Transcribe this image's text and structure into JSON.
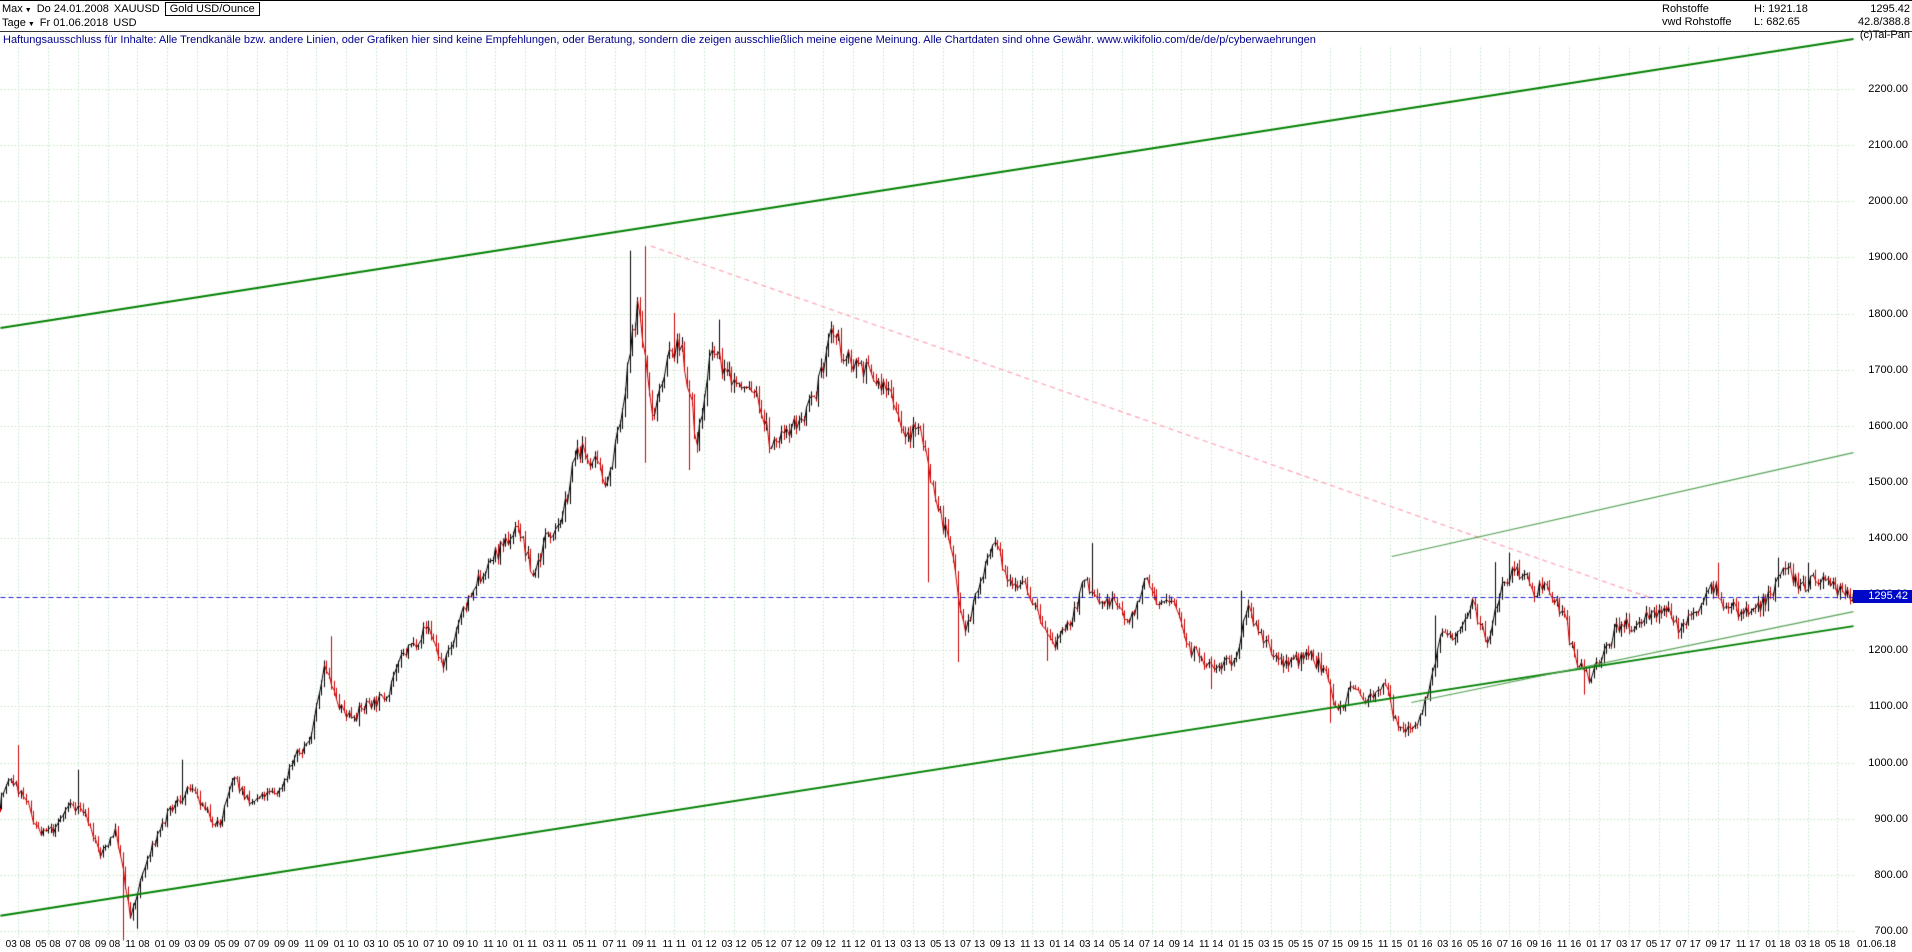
{
  "header": {
    "left": {
      "range": "Max",
      "dropdown_glyph": "▼",
      "start_date": "Do 24.01.2008",
      "symbol": "XAUUSD",
      "instrument": "Gold USD/Ounce",
      "period": "Tage",
      "end_date": "Fr 01.06.2018",
      "currency": "USD"
    },
    "right": {
      "category": "Rohstoffe",
      "high_label": "H:",
      "high_value": "1921.18",
      "last_value": "1295.42",
      "source": "vwd Rohstoffe",
      "low_label": "L:",
      "low_value": "682.65",
      "stat": "42.8/388.8",
      "copyright": "(c)Tai-Pan"
    },
    "disclaimer": "Haftungsausschluss für Inhalte: Alle Trendkanäle bzw. andere Linien, oder Grafiken hier sind keine Empfehlungen, oder Beratung, sondern die zeigen ausschließlich meine eigene Meinung. Alle Chartdaten sind ohne Gewähr.  www.wikifolio.com/de/de/p/cyberwaehrungen"
  },
  "chart_data": {
    "type": "candlestick",
    "title": "Gold USD/Ounce (XAUUSD), Tage, 24.01.2008 - 01.06.2018",
    "ylabel": "USD",
    "ylim": [
      660,
      2300
    ],
    "time_range": [
      2008.065,
      2018.42
    ],
    "y_ticks": [
      2200,
      2100,
      2000,
      1900,
      1800,
      1700,
      1600,
      1500,
      1400,
      1300,
      1200,
      1100,
      1000,
      900,
      800,
      700
    ],
    "x_tick_labels": [
      "03 08",
      "05 08",
      "07 08",
      "09 08",
      "11 08",
      "01 09",
      "03 09",
      "05 09",
      "07 09",
      "09 09",
      "11 09",
      "01 10",
      "03 10",
      "05 10",
      "07 10",
      "09 10",
      "11 10",
      "01 11",
      "03 11",
      "05 11",
      "07 11",
      "09 11",
      "11 11",
      "01 12",
      "03 12",
      "05 12",
      "07 12",
      "09 12",
      "11 12",
      "01 13",
      "03 13",
      "05 13",
      "07 13",
      "09 13",
      "11 13",
      "01 14",
      "03 14",
      "05 14",
      "07 14",
      "09 14",
      "11 14",
      "01 15",
      "03 15",
      "05 15",
      "07 15",
      "09 15",
      "11 15",
      "01 16",
      "03 16",
      "05 16",
      "07 16",
      "09 16",
      "11 16",
      "01 17",
      "03 17",
      "05 17",
      "07 17",
      "09 17",
      "11 17",
      "01 18",
      "03 18",
      "05 18"
    ],
    "end_label": "01.06.18",
    "last_price": 1295.42,
    "last_price_text": "1295.42",
    "all_time_high": 1921.18,
    "all_time_low": 682.65,
    "monthly": [
      [
        "2008-01",
        923
      ],
      [
        "2008-02",
        971
      ],
      [
        "2008-03",
        933,
        1032,
        null
      ],
      [
        "2008-04",
        871
      ],
      [
        "2008-05",
        885
      ],
      [
        "2008-06",
        930
      ],
      [
        "2008-07",
        913,
        988,
        null
      ],
      [
        "2008-08",
        833
      ],
      [
        "2008-09",
        885
      ],
      [
        "2008-10",
        724,
        null,
        682
      ],
      [
        "2008-11",
        816,
        null,
        705
      ],
      [
        "2008-12",
        882
      ],
      [
        "2009-01",
        927
      ],
      [
        "2009-02",
        952,
        1006,
        null
      ],
      [
        "2009-03",
        916
      ],
      [
        "2009-04",
        888
      ],
      [
        "2009-05",
        975
      ],
      [
        "2009-06",
        927
      ],
      [
        "2009-07",
        939
      ],
      [
        "2009-08",
        953
      ],
      [
        "2009-09",
        1008
      ],
      [
        "2009-10",
        1040
      ],
      [
        "2009-11",
        1175
      ],
      [
        "2009-12",
        1096,
        1226,
        null
      ],
      [
        "2010-01",
        1083
      ],
      [
        "2010-02",
        1108
      ],
      [
        "2010-03",
        1113
      ],
      [
        "2010-04",
        1179
      ],
      [
        "2010-05",
        1215
      ],
      [
        "2010-06",
        1244
      ],
      [
        "2010-07",
        1169
      ],
      [
        "2010-08",
        1248
      ],
      [
        "2010-09",
        1307
      ],
      [
        "2010-10",
        1357
      ],
      [
        "2010-11",
        1386
      ],
      [
        "2010-12",
        1421
      ],
      [
        "2011-01",
        1333
      ],
      [
        "2011-02",
        1411
      ],
      [
        "2011-03",
        1439
      ],
      [
        "2011-04",
        1564
      ],
      [
        "2011-05",
        1536
      ],
      [
        "2011-06",
        1500
      ],
      [
        "2011-07",
        1628
      ],
      [
        "2011-08",
        1826,
        1913,
        null
      ],
      [
        "2011-09",
        1620,
        1921,
        1535
      ],
      [
        "2011-10",
        1722
      ],
      [
        "2011-11",
        1746,
        1802,
        null
      ],
      [
        "2011-12",
        1566,
        null,
        1522
      ],
      [
        "2012-01",
        1737
      ],
      [
        "2012-02",
        1696,
        1790,
        null
      ],
      [
        "2012-03",
        1668
      ],
      [
        "2012-04",
        1664
      ],
      [
        "2012-05",
        1560
      ],
      [
        "2012-06",
        1597
      ],
      [
        "2012-07",
        1614
      ],
      [
        "2012-08",
        1648
      ],
      [
        "2012-09",
        1776
      ],
      [
        "2012-10",
        1719
      ],
      [
        "2012-11",
        1714
      ],
      [
        "2012-12",
        1675
      ],
      [
        "2013-01",
        1661
      ],
      [
        "2013-02",
        1580
      ],
      [
        "2013-03",
        1597
      ],
      [
        "2013-04",
        1472,
        null,
        1322
      ],
      [
        "2013-05",
        1387
      ],
      [
        "2013-06",
        1234,
        null,
        1180
      ],
      [
        "2013-07",
        1323
      ],
      [
        "2013-08",
        1394
      ],
      [
        "2013-09",
        1328
      ],
      [
        "2013-10",
        1323
      ],
      [
        "2013-11",
        1252
      ],
      [
        "2013-12",
        1205,
        null,
        1182
      ],
      [
        "2014-01",
        1244
      ],
      [
        "2014-02",
        1326
      ],
      [
        "2014-03",
        1284,
        1392,
        null
      ],
      [
        "2014-04",
        1291
      ],
      [
        "2014-05",
        1250
      ],
      [
        "2014-06",
        1327
      ],
      [
        "2014-07",
        1282
      ],
      [
        "2014-08",
        1287
      ],
      [
        "2014-09",
        1209
      ],
      [
        "2014-10",
        1173
      ],
      [
        "2014-11",
        1175,
        null,
        1132
      ],
      [
        "2014-12",
        1184
      ],
      [
        "2015-01",
        1283,
        1307,
        null
      ],
      [
        "2015-02",
        1213
      ],
      [
        "2015-03",
        1184
      ],
      [
        "2015-04",
        1184
      ],
      [
        "2015-05",
        1190
      ],
      [
        "2015-06",
        1171
      ],
      [
        "2015-07",
        1095,
        null,
        1072
      ],
      [
        "2015-08",
        1134
      ],
      [
        "2015-09",
        1115
      ],
      [
        "2015-10",
        1142
      ],
      [
        "2015-11",
        1064
      ],
      [
        "2015-12",
        1061,
        null,
        1046
      ],
      [
        "2016-01",
        1116
      ],
      [
        "2016-02",
        1234,
        1263,
        null
      ],
      [
        "2016-03",
        1233
      ],
      [
        "2016-04",
        1293
      ],
      [
        "2016-05",
        1213
      ],
      [
        "2016-06",
        1321,
        1358,
        null
      ],
      [
        "2016-07",
        1351,
        1375,
        null
      ],
      [
        "2016-08",
        1309
      ],
      [
        "2016-09",
        1316
      ],
      [
        "2016-10",
        1272
      ],
      [
        "2016-11",
        1173
      ],
      [
        "2016-12",
        1152,
        null,
        1122
      ],
      [
        "2017-01",
        1210
      ],
      [
        "2017-02",
        1249
      ],
      [
        "2017-03",
        1245
      ],
      [
        "2017-04",
        1268
      ],
      [
        "2017-05",
        1269
      ],
      [
        "2017-06",
        1242
      ],
      [
        "2017-07",
        1269
      ],
      [
        "2017-08",
        1321
      ],
      [
        "2017-09",
        1280,
        1357,
        null
      ],
      [
        "2017-10",
        1271
      ],
      [
        "2017-11",
        1275
      ],
      [
        "2017-12",
        1303
      ],
      [
        "2018-01",
        1345,
        1366,
        null
      ],
      [
        "2018-02",
        1318
      ],
      [
        "2018-03",
        1325,
        1357,
        null
      ],
      [
        "2018-04",
        1315
      ],
      [
        "2018-05",
        1298
      ],
      [
        "2018-06",
        1295.42
      ]
    ],
    "trendlines": [
      {
        "name": "channel-upper",
        "color": "#008000",
        "width": 2,
        "dash": [],
        "points": [
          [
            2008.065,
            1775
          ],
          [
            2018.42,
            2290
          ]
        ]
      },
      {
        "name": "channel-lower",
        "color": "#008000",
        "width": 2,
        "dash": [],
        "points": [
          [
            2008.065,
            728
          ],
          [
            2018.42,
            1244
          ]
        ]
      },
      {
        "name": "resistance-from-ath",
        "color": "#ffa0b4",
        "width": 1.2,
        "dash": [
          5,
          4
        ],
        "points": [
          [
            2011.7,
            1921
          ],
          [
            2017.28,
            1295
          ]
        ]
      },
      {
        "name": "wedge-upper",
        "color": "#55a055",
        "width": 1.2,
        "dash": [],
        "points": [
          [
            2015.84,
            1368
          ],
          [
            2018.42,
            1553
          ]
        ]
      },
      {
        "name": "wedge-lower",
        "color": "#55a055",
        "width": 1.2,
        "dash": [],
        "points": [
          [
            2015.95,
            1108
          ],
          [
            2018.42,
            1270
          ]
        ]
      }
    ],
    "grid": {
      "h_step": 100,
      "v_every_months": 2,
      "color": "#c4e4c4"
    },
    "colors": {
      "up": "#000000",
      "down": "#cc0000",
      "last_line": "#2020d0",
      "last_label_bg": "#0008c8"
    },
    "legend": "none"
  }
}
